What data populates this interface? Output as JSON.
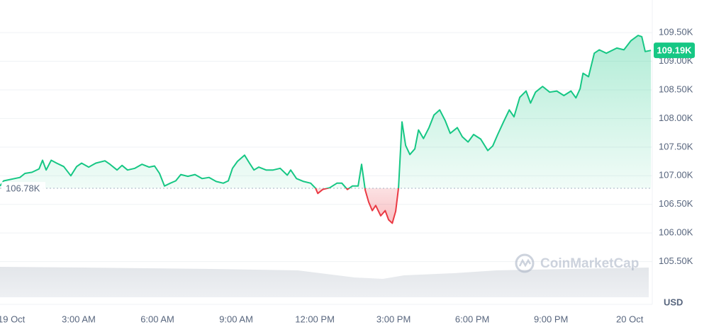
{
  "chart_data": {
    "type": "line",
    "x": [
      0,
      0.14,
      0.76,
      0.95,
      1.22,
      1.49,
      1.62,
      1.76,
      1.95,
      2.16,
      2.43,
      2.7,
      2.92,
      3.11,
      3.38,
      3.65,
      4.0,
      4.19,
      4.46,
      4.65,
      4.86,
      5.14,
      5.41,
      5.68,
      5.89,
      6.08,
      6.27,
      6.49,
      6.7,
      6.89,
      7.16,
      7.43,
      7.7,
      7.97,
      8.24,
      8.51,
      8.7,
      8.86,
      9.05,
      9.32,
      9.51,
      9.68,
      9.86,
      10.14,
      10.41,
      10.68,
      10.95,
      11.08,
      11.3,
      11.57,
      11.84,
      12.03,
      12.11,
      12.3,
      12.57,
      12.84,
      13.03,
      13.24,
      13.43,
      13.65,
      13.78,
      13.92,
      14.05,
      14.19,
      14.32,
      14.51,
      14.68,
      14.81,
      14.95,
      15.08,
      15.19,
      15.32,
      15.46,
      15.62,
      15.81,
      15.95,
      16.14,
      16.35,
      16.54,
      16.76,
      16.97,
      17.16,
      17.43,
      17.62,
      17.84,
      18.05,
      18.32,
      18.59,
      18.78,
      18.97,
      19.19,
      19.41,
      19.59,
      19.81,
      20.05,
      20.22,
      20.41,
      20.68,
      20.95,
      21.22,
      21.49,
      21.76,
      21.95,
      22.11,
      22.22,
      22.43,
      22.65,
      22.84,
      23.11,
      23.51,
      23.78,
      24.05,
      24.32,
      24.46,
      24.59,
      24.81
    ],
    "values": [
      106820,
      106910,
      106970,
      107040,
      107060,
      107120,
      107270,
      107100,
      107270,
      107220,
      107160,
      107000,
      107160,
      107220,
      107150,
      107220,
      107260,
      107200,
      107100,
      107180,
      107100,
      107130,
      107200,
      107150,
      107170,
      107040,
      106820,
      106870,
      106910,
      107020,
      106990,
      107020,
      106950,
      106970,
      106900,
      106870,
      106910,
      107130,
      107250,
      107360,
      107220,
      107100,
      107150,
      107100,
      107100,
      107130,
      107010,
      107100,
      106950,
      106900,
      106870,
      106780,
      106690,
      106760,
      106790,
      106870,
      106870,
      106760,
      106820,
      106820,
      107200,
      106750,
      106540,
      106390,
      106480,
      106300,
      106390,
      106230,
      106170,
      106380,
      106790,
      107940,
      107530,
      107370,
      107470,
      107800,
      107650,
      107840,
      108060,
      108150,
      107960,
      107740,
      107840,
      107680,
      107590,
      107720,
      107640,
      107440,
      107520,
      107720,
      107940,
      108150,
      108030,
      108370,
      108480,
      108270,
      108460,
      108560,
      108460,
      108480,
      108400,
      108480,
      108360,
      108520,
      108790,
      108730,
      109140,
      109200,
      109140,
      109230,
      109200,
      109360,
      109450,
      109430,
      109170,
      109190
    ],
    "up_color": "#16c784",
    "down_color": "#ea3943",
    "baseline": {
      "value": 106780,
      "label": "106.78K"
    },
    "last_value": {
      "value": 109190,
      "label": "109.19K"
    },
    "xlim": [
      0,
      24.86
    ],
    "xticks": [
      {
        "value": 0,
        "label": "19 Oct"
      },
      {
        "value": 3,
        "label": "3:00 AM"
      },
      {
        "value": 6,
        "label": "6:00 AM"
      },
      {
        "value": 9,
        "label": "9:00 AM"
      },
      {
        "value": 12,
        "label": "12:00 PM"
      },
      {
        "value": 15,
        "label": "3:00 PM"
      },
      {
        "value": 18,
        "label": "6:00 PM"
      },
      {
        "value": 21,
        "label": "9:00 PM"
      },
      {
        "value": 24,
        "label": "20 Oct"
      }
    ],
    "ylim": [
      105000,
      110070
    ],
    "yticks": [
      {
        "value": 105500,
        "label": "105.50K"
      },
      {
        "value": 106000,
        "label": "106.00K"
      },
      {
        "value": 106500,
        "label": "106.50K"
      },
      {
        "value": 107000,
        "label": "107.00K"
      },
      {
        "value": 107500,
        "label": "107.50K"
      },
      {
        "value": 108000,
        "label": "108.00K"
      },
      {
        "value": 108500,
        "label": "108.50K"
      },
      {
        "value": 109000,
        "label": "109.00K"
      },
      {
        "value": 109500,
        "label": "109.50K"
      }
    ],
    "y_axis_unit": "USD",
    "grid": true,
    "watermark": "CoinMarketCap"
  }
}
